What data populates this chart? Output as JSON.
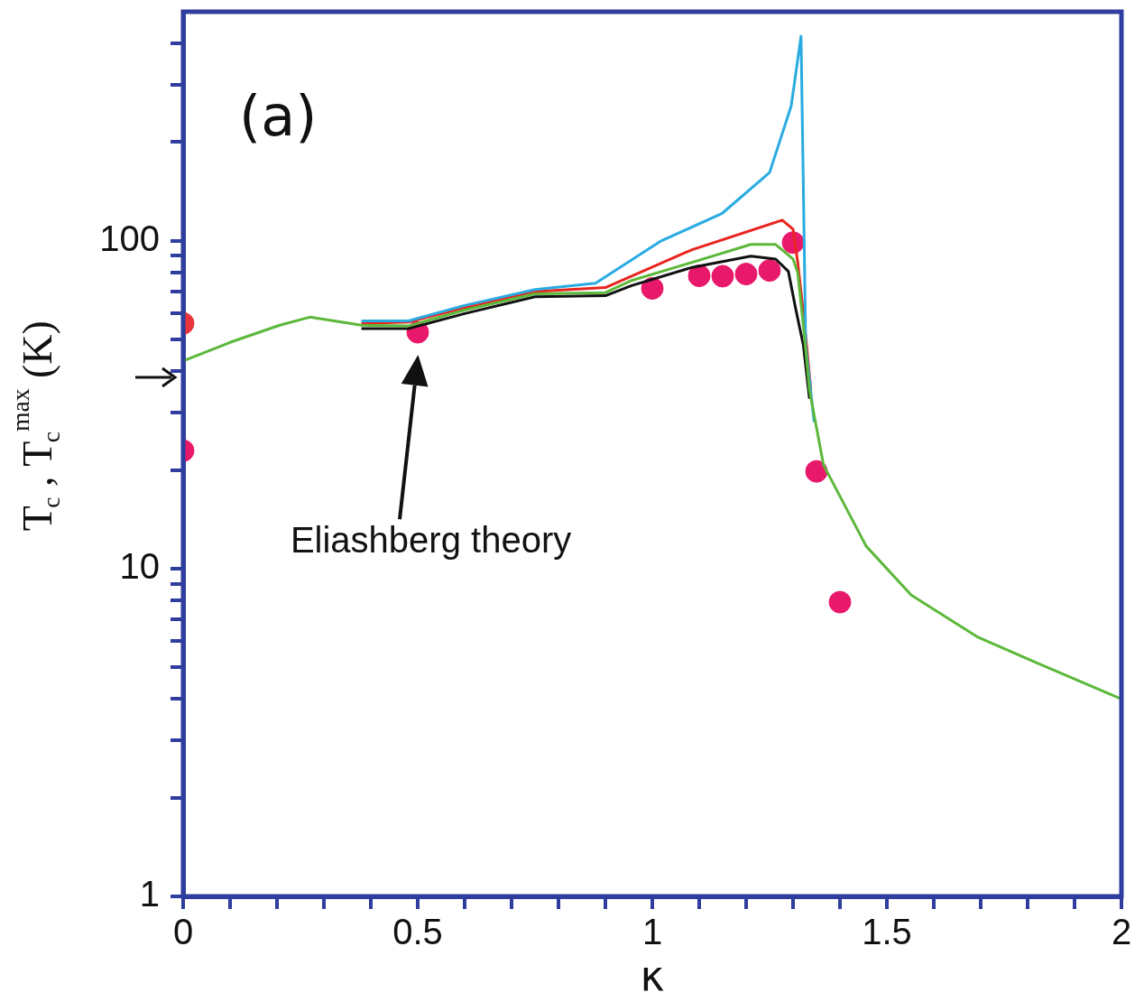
{
  "chart_data": {
    "type": "line",
    "title": "(a)",
    "xlabel": "κ",
    "ylabel": "T$_{c}$ , T$_{c}$$^{max}$ (K)",
    "xlim": [
      0,
      2
    ],
    "ylim": [
      1,
      500
    ],
    "log": "y",
    "grid": false,
    "legend": false,
    "xticks": [
      0,
      {
        "value": 0.1,
        "label": null
      },
      {
        "value": 0.2,
        "label": null
      },
      {
        "value": 0.3,
        "label": null
      },
      {
        "value": 0.4,
        "label": null
      },
      0.5,
      {
        "value": 0.6,
        "label": null
      },
      {
        "value": 0.7,
        "label": null
      },
      {
        "value": 0.8,
        "label": null
      },
      {
        "value": 0.9,
        "label": null
      },
      1,
      {
        "value": 1.1,
        "label": null
      },
      {
        "value": 1.2,
        "label": null
      },
      {
        "value": 1.3,
        "label": null
      },
      {
        "value": 1.4,
        "label": null
      },
      1.5,
      {
        "value": 1.6,
        "label": null
      },
      {
        "value": 1.7,
        "label": null
      },
      {
        "value": 1.8,
        "label": null
      },
      {
        "value": 1.9,
        "label": null
      },
      2
    ],
    "yticks": [
      1,
      {
        "value": 2,
        "label": null
      },
      {
        "value": 3,
        "label": null
      },
      {
        "value": 4,
        "label": null
      },
      {
        "value": 5,
        "label": null
      },
      {
        "value": 6,
        "label": null
      },
      {
        "value": 7,
        "label": null
      },
      {
        "value": 8,
        "label": null
      },
      {
        "value": 9,
        "label": null
      },
      10,
      {
        "value": 20,
        "label": null
      },
      {
        "value": 30,
        "label": null
      },
      {
        "value": 40,
        "label": null
      },
      {
        "value": 50,
        "label": null
      },
      {
        "value": 60,
        "label": null
      },
      {
        "value": 70,
        "label": null
      },
      {
        "value": 80,
        "label": null
      },
      {
        "value": 90,
        "label": null
      },
      100,
      {
        "value": 200,
        "label": null
      },
      {
        "value": 300,
        "label": null
      },
      {
        "value": 400,
        "label": null
      }
    ],
    "annotations": [
      "Eliashberg theory"
    ],
    "series": [
      {
        "type": "line",
        "color": "#5cb83a",
        "marker": "none",
        "x": [
          0,
          0.1,
          0.206,
          0.27,
          0.38,
          0.48,
          0.6,
          0.75,
          0.9,
          0.956,
          1.085,
          1.21,
          1.263,
          1.3,
          1.31,
          1.322,
          1.335,
          1.365,
          1.456,
          1.552,
          1.692,
          1.821,
          2
        ],
        "values": [
          43,
          49,
          55.3,
          58.5,
          55.3,
          55,
          61.5,
          68.9,
          69.5,
          75.7,
          86,
          97.5,
          97.5,
          88,
          80,
          55,
          35,
          20.7,
          11.7,
          8.3,
          6.2,
          5.15,
          4.0
        ]
      },
      {
        "type": "line",
        "color": "#111111",
        "marker": "none",
        "x": [
          0.38,
          0.48,
          0.6,
          0.75,
          0.9,
          0.956,
          1.085,
          1.21,
          1.263,
          1.29,
          1.305,
          1.322,
          1.335
        ],
        "values": [
          54,
          54,
          60,
          67.5,
          68,
          73,
          83,
          89.8,
          88,
          80.7,
          62.7,
          48,
          33
        ]
      },
      {
        "type": "line",
        "color": "#29abe2",
        "marker": "none",
        "x": [
          0.38,
          0.48,
          0.6,
          0.75,
          0.879,
          1.019,
          1.148,
          1.25,
          1.296,
          1.317,
          1.322,
          1.327,
          1.345
        ],
        "values": [
          57,
          57,
          63.5,
          71,
          74.3,
          100,
          121,
          161.6,
          257.6,
          421,
          146,
          47.8,
          28
        ]
      },
      {
        "type": "line",
        "color": "#e8251f",
        "marker": "none",
        "x": [
          0.38,
          0.48,
          0.6,
          0.75,
          0.9,
          1.085,
          1.277,
          1.3,
          1.31,
          1.325,
          1.338
        ],
        "values": [
          56,
          56.5,
          62.5,
          70,
          72,
          94,
          115.6,
          108.6,
          86,
          55,
          35
        ]
      },
      {
        "type": "scatter",
        "color": "#e8343a",
        "marker": "circle",
        "x": [
          0
        ],
        "values": [
          56
        ]
      },
      {
        "type": "scatter",
        "color": "#e8186a",
        "marker": "circle",
        "x": [
          0,
          0.5,
          1.0,
          1.1,
          1.15,
          1.2,
          1.25,
          1.3,
          1.35,
          1.4
        ],
        "values": [
          22.9,
          52.6,
          71.6,
          78.2,
          78,
          79.2,
          81.2,
          98.8,
          19.8,
          7.9
        ]
      }
    ]
  }
}
